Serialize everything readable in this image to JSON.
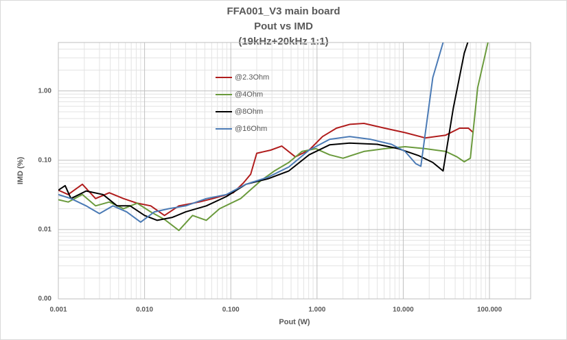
{
  "chart_data": {
    "type": "line",
    "title": [
      "FFA001_V3 main board",
      "Pout vs IMD",
      "(19kHz+20kHz 1:1)"
    ],
    "x_label": "Pout (W)",
    "y_label": "IMD (%)",
    "xlog": true,
    "ylog": true,
    "grid": true,
    "minor_grid": true,
    "xlim": [
      0.001,
      300
    ],
    "ylim": [
      0.001,
      5
    ],
    "xticks": [
      0.001,
      {
        "value": 0.01,
        "label": "0.010"
      },
      {
        "value": 0.1,
        "label": "0.100"
      },
      {
        "value": 1,
        "label": "1.000"
      },
      {
        "value": 10,
        "label": "10.000"
      },
      {
        "value": 100,
        "label": "100.000"
      }
    ],
    "yticks": [
      {
        "value": 0.001,
        "label": "0.00"
      },
      {
        "value": 0.01,
        "label": "0.01"
      },
      {
        "value": 0.1,
        "label": "0.10"
      },
      {
        "value": 1,
        "label": "1.00"
      }
    ],
    "series": [
      {
        "name": "@2.3Ohm",
        "color": "#b01c1c",
        "x": [
          0.001,
          0.0013,
          0.0019,
          0.0027,
          0.0039,
          0.0057,
          0.0082,
          0.0118,
          0.017,
          0.025,
          0.043,
          0.062,
          0.107,
          0.14,
          0.17,
          0.2,
          0.29,
          0.39,
          0.56,
          0.81,
          1.16,
          1.68,
          2.4,
          3.5,
          6.1,
          10.5,
          18,
          31,
          45,
          57,
          65
        ],
        "values": [
          0.037,
          0.032,
          0.045,
          0.028,
          0.034,
          0.028,
          0.024,
          0.022,
          0.016,
          0.022,
          0.025,
          0.028,
          0.034,
          0.047,
          0.063,
          0.126,
          0.14,
          0.16,
          0.112,
          0.14,
          0.22,
          0.29,
          0.33,
          0.34,
          0.29,
          0.25,
          0.21,
          0.23,
          0.29,
          0.29,
          0.25
        ]
      },
      {
        "name": "@4Ohm",
        "color": "#6a9a3c",
        "x": [
          0.001,
          0.0013,
          0.0019,
          0.0027,
          0.0039,
          0.0057,
          0.0082,
          0.0118,
          0.017,
          0.025,
          0.036,
          0.052,
          0.074,
          0.13,
          0.22,
          0.32,
          0.47,
          0.67,
          0.97,
          1.4,
          2.0,
          3.5,
          6.1,
          10.5,
          18,
          31,
          42,
          51,
          60,
          73,
          96
        ],
        "values": [
          0.027,
          0.025,
          0.032,
          0.022,
          0.025,
          0.02,
          0.024,
          0.018,
          0.014,
          0.0097,
          0.016,
          0.0136,
          0.02,
          0.028,
          0.05,
          0.07,
          0.093,
          0.134,
          0.147,
          0.12,
          0.107,
          0.134,
          0.147,
          0.157,
          0.147,
          0.134,
          0.112,
          0.095,
          0.107,
          1.12,
          5
        ]
      },
      {
        "name": "@8Ohm",
        "color": "#000000",
        "x": [
          0.001,
          0.0012,
          0.0014,
          0.0021,
          0.0033,
          0.0048,
          0.0068,
          0.01,
          0.014,
          0.021,
          0.03,
          0.052,
          0.089,
          0.15,
          0.27,
          0.47,
          0.81,
          1.4,
          2.4,
          5.0,
          8.8,
          15,
          22,
          29,
          38,
          51,
          56
        ],
        "values": [
          0.037,
          0.043,
          0.028,
          0.036,
          0.032,
          0.022,
          0.022,
          0.016,
          0.0136,
          0.015,
          0.018,
          0.022,
          0.03,
          0.045,
          0.054,
          0.07,
          0.12,
          0.167,
          0.177,
          0.17,
          0.147,
          0.117,
          0.093,
          0.07,
          0.56,
          3.5,
          5
        ]
      },
      {
        "name": "@16Ohm",
        "color": "#4a7ab5",
        "x": [
          0.001,
          0.0014,
          0.0021,
          0.003,
          0.0043,
          0.0062,
          0.009,
          0.013,
          0.019,
          0.03,
          0.052,
          0.089,
          0.15,
          0.27,
          0.47,
          0.81,
          1.4,
          2.4,
          4.2,
          7.3,
          10.5,
          14,
          16,
          22,
          29
        ],
        "values": [
          0.032,
          0.028,
          0.022,
          0.017,
          0.022,
          0.018,
          0.0128,
          0.018,
          0.02,
          0.022,
          0.028,
          0.032,
          0.045,
          0.057,
          0.08,
          0.14,
          0.2,
          0.22,
          0.2,
          0.17,
          0.134,
          0.089,
          0.082,
          1.56,
          5
        ]
      }
    ]
  }
}
